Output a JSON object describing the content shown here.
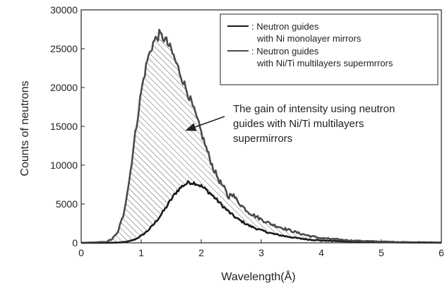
{
  "chart_data": {
    "type": "line",
    "xlabel": "Wavelength(Å)",
    "ylabel": "Counts of neutrons",
    "xlim": [
      0,
      6
    ],
    "ylim": [
      0,
      30000
    ],
    "x_ticks": [
      "0",
      "1",
      "2",
      "3",
      "4",
      "5",
      "6"
    ],
    "y_ticks": [
      "0",
      "5000",
      "10000",
      "15000",
      "20000",
      "25000",
      "30000"
    ],
    "grid": false,
    "legend_position": "top-right",
    "shaded_region": "between series",
    "series": [
      {
        "name": "Neutron guides with Ni monolayer mirrors",
        "legend_lines": [
          ": Neutron guides",
          "with Ni monolayer mirrors"
        ],
        "color": "#1a1a1a",
        "x": [
          0,
          0.4,
          0.6,
          0.7,
          0.8,
          0.9,
          1.0,
          1.1,
          1.2,
          1.3,
          1.4,
          1.5,
          1.6,
          1.7,
          1.8,
          1.9,
          2.0,
          2.1,
          2.2,
          2.3,
          2.4,
          2.5,
          2.6,
          2.8,
          3.0,
          3.2,
          3.4,
          3.6,
          3.8,
          4.0,
          4.5,
          5.0,
          5.5,
          6.0
        ],
        "y": [
          0,
          0,
          30,
          80,
          200,
          450,
          900,
          1500,
          2300,
          3300,
          4400,
          5600,
          6700,
          7400,
          7800,
          7700,
          7300,
          6700,
          6000,
          5200,
          4400,
          3700,
          3100,
          2200,
          1600,
          1150,
          850,
          600,
          420,
          300,
          150,
          80,
          40,
          20
        ]
      },
      {
        "name": "Neutron guides with Ni/Ti multilayers supermrrors",
        "legend_lines": [
          ": Neutron guides",
          "with Ni/Ti multilayers supermrrors"
        ],
        "color": "#4a4a4a",
        "x": [
          0,
          0.4,
          0.5,
          0.6,
          0.7,
          0.8,
          0.9,
          1.0,
          1.1,
          1.2,
          1.3,
          1.4,
          1.5,
          1.6,
          1.7,
          1.8,
          1.9,
          2.0,
          2.1,
          2.2,
          2.3,
          2.4,
          2.45,
          2.5,
          2.6,
          2.7,
          2.8,
          3.0,
          3.2,
          3.4,
          3.6,
          3.8,
          4.0,
          4.5,
          5.0,
          5.5,
          6.0
        ],
        "y": [
          0,
          100,
          400,
          1200,
          3500,
          8000,
          14000,
          19500,
          23500,
          25800,
          26800,
          26200,
          24800,
          22800,
          20800,
          18800,
          16600,
          14200,
          11800,
          9600,
          8000,
          6800,
          5700,
          6500,
          5400,
          4600,
          3900,
          3000,
          2300,
          1800,
          1300,
          900,
          600,
          300,
          150,
          80,
          40
        ]
      }
    ],
    "annotation": {
      "lines": [
        "The gain of intensity using neutron",
        "guides with Ni/Ti multilayers",
        "supermirrors"
      ],
      "arrow_target": [
        1.75,
        14500
      ]
    }
  }
}
